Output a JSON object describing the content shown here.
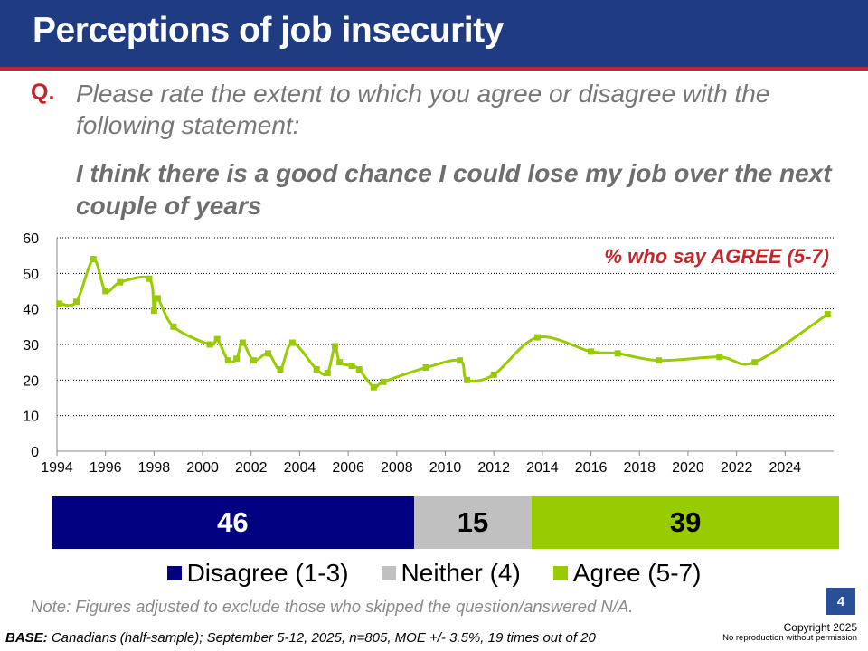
{
  "header": {
    "title": "Perceptions of job insecurity"
  },
  "question": {
    "marker": "Q.",
    "text": "Please rate the extent to which you agree or disagree with the following statement:",
    "statement": "I think there is a good chance I could lose my job over the next couple of years"
  },
  "colors": {
    "header": "#1f3b82",
    "accent_red": "#c0282d",
    "disagree": "#000080",
    "neither": "#c0c0c0",
    "agree": "#99cc00"
  },
  "chart_data": [
    {
      "type": "line",
      "annotation": "% who say AGREE (5-7)",
      "ylim": [
        0,
        60
      ],
      "yticks": [
        0,
        10,
        20,
        30,
        40,
        50,
        60
      ],
      "xlim": [
        1994,
        2026
      ],
      "xticks": [
        "1994",
        "1996",
        "1998",
        "2000",
        "2002",
        "2004",
        "2006",
        "2008",
        "2010",
        "2012",
        "2014",
        "2016",
        "2018",
        "2020",
        "2022",
        "2024"
      ],
      "grid": "horizontal dotted",
      "series": [
        {
          "color": "#99cc00",
          "points": [
            [
              1994.1,
              41.5
            ],
            [
              1994.8,
              42
            ],
            [
              1995.5,
              54
            ],
            [
              1996.0,
              45
            ],
            [
              1996.6,
              47.5
            ],
            [
              1997.8,
              48.5
            ],
            [
              1998.0,
              39.5
            ],
            [
              1998.15,
              43
            ],
            [
              1998.8,
              35
            ],
            [
              2000.3,
              30
            ],
            [
              2000.6,
              31.5
            ],
            [
              2001.05,
              25.5
            ],
            [
              2001.4,
              26
            ],
            [
              2001.65,
              30.5
            ],
            [
              2002.1,
              25.5
            ],
            [
              2002.7,
              27.5
            ],
            [
              2003.2,
              23
            ],
            [
              2003.7,
              30.5
            ],
            [
              2004.7,
              23
            ],
            [
              2005.15,
              22
            ],
            [
              2005.45,
              29.5
            ],
            [
              2005.65,
              25
            ],
            [
              2006.15,
              24
            ],
            [
              2006.45,
              23
            ],
            [
              2007.05,
              18
            ],
            [
              2007.45,
              19.5
            ],
            [
              2009.2,
              23.5
            ],
            [
              2010.6,
              25.5
            ],
            [
              2010.9,
              20
            ],
            [
              2012.0,
              21.5
            ],
            [
              2013.8,
              32
            ],
            [
              2016.0,
              28
            ],
            [
              2017.1,
              27.5
            ],
            [
              2018.8,
              25.5
            ],
            [
              2021.3,
              26.5
            ],
            [
              2022.75,
              25
            ],
            [
              2025.75,
              38.5
            ]
          ]
        }
      ]
    },
    {
      "type": "bar",
      "orientation": "horizontal-stacked",
      "categories": [
        "Disagree (1-3)",
        "Neither (4)",
        "Agree (5-7)"
      ],
      "values": [
        46,
        15,
        39
      ],
      "legend": "bottom"
    }
  ],
  "legend": [
    {
      "label": "Disagree (1-3)",
      "color": "#000080"
    },
    {
      "label": "Neither (4)",
      "color": "#c0c0c0"
    },
    {
      "label": "Agree (5-7)",
      "color": "#99cc00"
    }
  ],
  "note": "Note: Figures adjusted to exclude those who skipped the question/answered N/A.",
  "page_number": "4",
  "base": {
    "label": "BASE:",
    "text": "Canadians (half-sample); September 5-12, 2025, n=805, MOE +/- 3.5%, 19 times out of 20"
  },
  "copyright": {
    "line1": "Copyright 2025",
    "line2": "No reproduction without permission"
  }
}
